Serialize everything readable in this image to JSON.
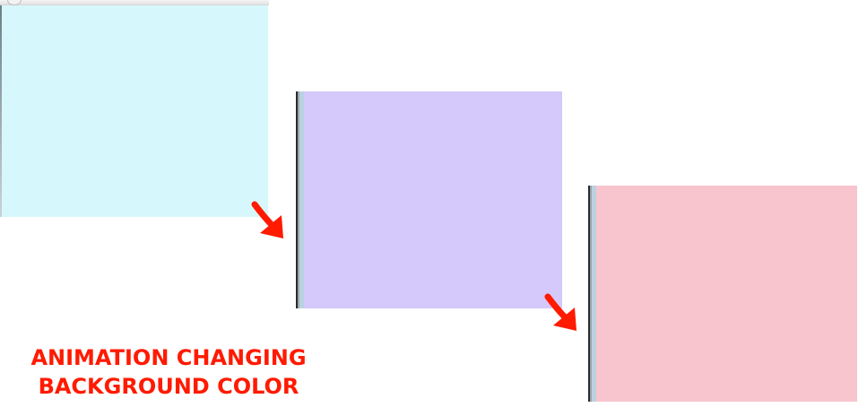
{
  "frames": [
    {
      "name": "frame-1",
      "color": "#d6f8fd"
    },
    {
      "name": "frame-2",
      "color": "#d5c8fb"
    },
    {
      "name": "frame-3",
      "color": "#f8c5cf"
    }
  ],
  "arrow_color": "#ff1a00",
  "caption": {
    "line1": "ANIMATION CHANGING",
    "line2": "BACKGROUND COLOR"
  }
}
